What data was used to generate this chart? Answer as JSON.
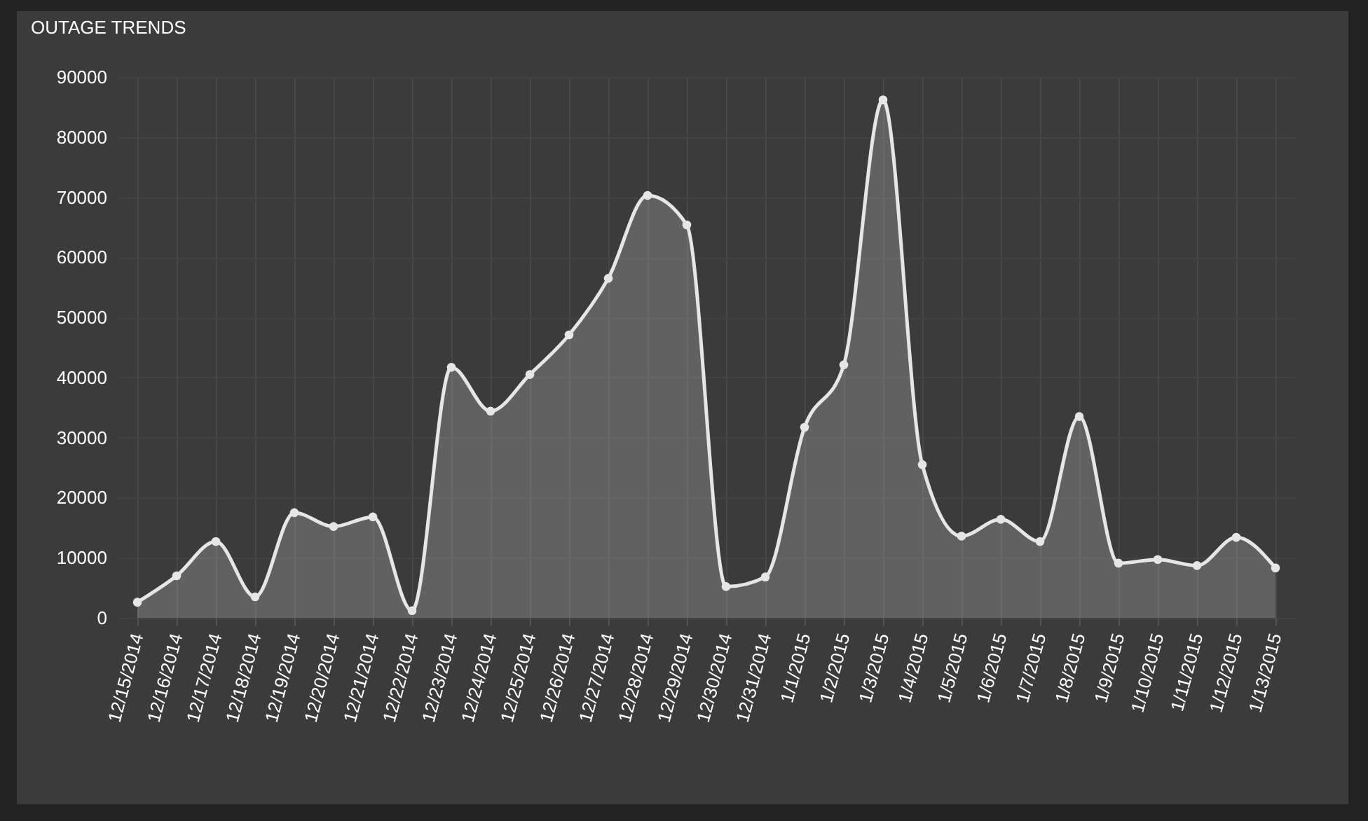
{
  "chart_data": {
    "type": "area",
    "title": "OUTAGE TRENDS",
    "categories": [
      "12/15/2014",
      "12/16/2014",
      "12/17/2014",
      "12/18/2014",
      "12/19/2014",
      "12/20/2014",
      "12/21/2014",
      "12/22/2014",
      "12/23/2014",
      "12/24/2014",
      "12/25/2014",
      "12/26/2014",
      "12/27/2014",
      "12/28/2014",
      "12/29/2014",
      "12/30/2014",
      "12/31/2014",
      "1/1/2015",
      "1/2/2015",
      "1/3/2015",
      "1/4/2015",
      "1/5/2015",
      "1/6/2015",
      "1/7/2015",
      "1/8/2015",
      "1/9/2015",
      "1/10/2015",
      "1/11/2015",
      "1/12/2015",
      "1/13/2015"
    ],
    "series": [
      {
        "color": "#e6e6e6",
        "values": [
          2600,
          7000,
          12700,
          3500,
          17500,
          15200,
          16800,
          1200,
          41700,
          34400,
          40500,
          47100,
          56500,
          70300,
          65400,
          5200,
          6800,
          31700,
          42100,
          86200,
          25500,
          13600,
          16400,
          12700,
          33500,
          9100,
          9700,
          8700,
          13400,
          8300
        ]
      }
    ],
    "ylim": [
      0,
      90000
    ],
    "yticks": [
      0,
      10000,
      20000,
      30000,
      40000,
      50000,
      60000,
      70000,
      80000,
      90000
    ],
    "grid": true,
    "marker": "circle"
  }
}
